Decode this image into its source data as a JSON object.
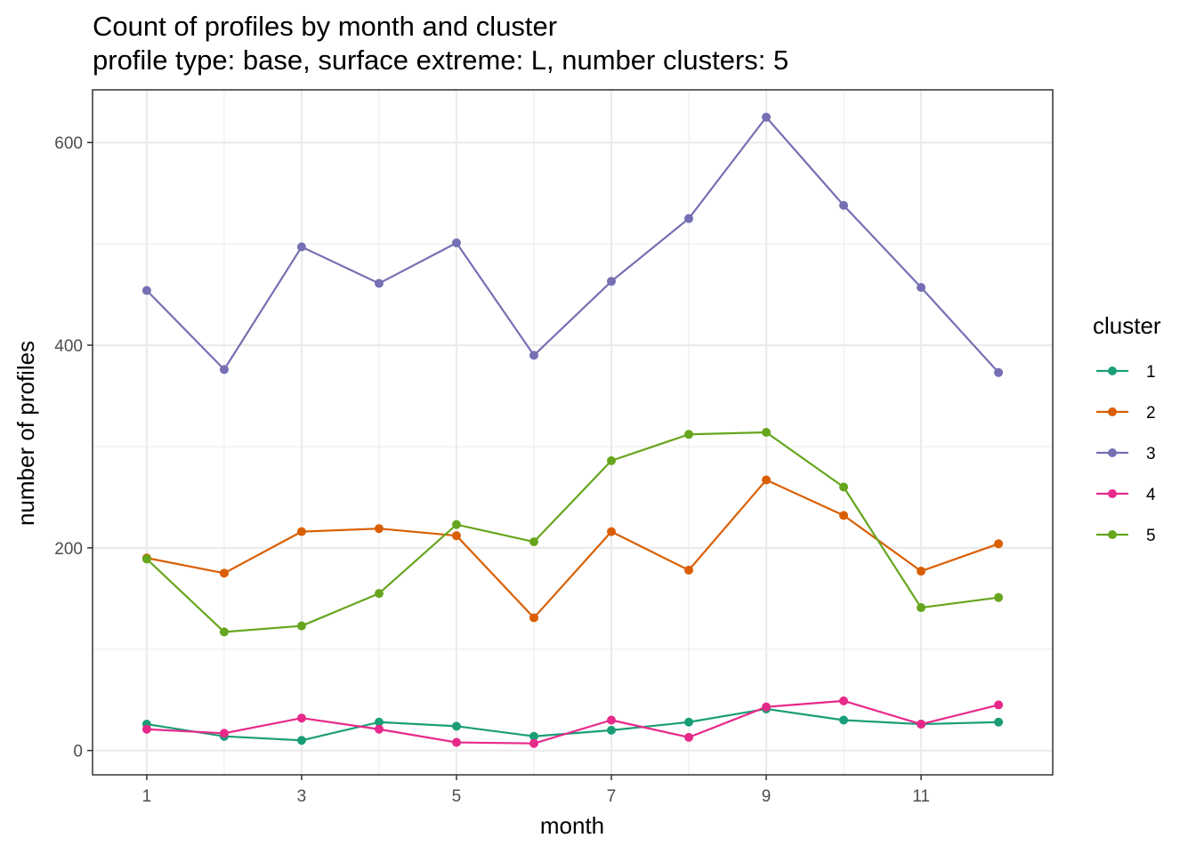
{
  "chart_data": {
    "type": "line",
    "title": "Count of profiles by month and cluster",
    "subtitle": "profile type: base, surface extreme: L, number clusters: 5",
    "xlabel": "month",
    "ylabel": "number of profiles",
    "x": [
      1,
      2,
      3,
      4,
      5,
      6,
      7,
      8,
      9,
      10,
      11,
      12
    ],
    "x_ticks": [
      1,
      3,
      5,
      7,
      9,
      11
    ],
    "y_ticks": [
      0,
      200,
      400,
      600
    ],
    "xlim": [
      0.3,
      12.7
    ],
    "ylim": [
      -24,
      652
    ],
    "grid": true,
    "legend": {
      "title": "cluster",
      "position": "right"
    },
    "series": [
      {
        "name": "1",
        "color": "#1b9e77",
        "values": [
          26,
          14,
          10,
          28,
          24,
          14,
          20,
          28,
          41,
          30,
          26,
          28
        ]
      },
      {
        "name": "2",
        "color": "#d95f02",
        "values": [
          190,
          175,
          216,
          219,
          212,
          131,
          216,
          178,
          267,
          232,
          177,
          204
        ]
      },
      {
        "name": "3",
        "color": "#7570b3",
        "values": [
          454,
          376,
          497,
          461,
          501,
          390,
          463,
          525,
          625,
          538,
          457,
          373
        ]
      },
      {
        "name": "4",
        "color": "#e7298a",
        "values": [
          21,
          17,
          32,
          21,
          8,
          7,
          30,
          13,
          43,
          49,
          26,
          45
        ]
      },
      {
        "name": "5",
        "color": "#66a61e",
        "values": [
          189,
          117,
          123,
          155,
          223,
          206,
          286,
          312,
          314,
          260,
          141,
          151
        ]
      }
    ]
  }
}
